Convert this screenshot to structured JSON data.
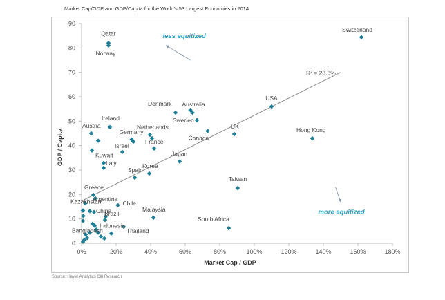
{
  "chart_data": {
    "type": "scatter",
    "title": "Market Cap/GDP and GDP/Capita for the World's 53 Largest Economies in 2014",
    "xlabel": "Market Cap / GDP",
    "ylabel": "GDP / Capita",
    "xlim": [
      0,
      180
    ],
    "ylim": [
      0,
      90
    ],
    "x_ticks": [
      0,
      20,
      40,
      60,
      80,
      100,
      120,
      140,
      160,
      180
    ],
    "x_tick_labels": [
      "0%",
      "20%",
      "40%",
      "60%",
      "80%",
      "100%",
      "120%",
      "140%",
      "160%",
      "180%"
    ],
    "y_ticks": [
      0,
      10,
      20,
      30,
      40,
      50,
      60,
      70,
      80,
      90
    ],
    "y_tick_labels": [
      "0",
      "10",
      "20",
      "30",
      "40",
      "50",
      "60",
      "70",
      "80",
      "90"
    ],
    "grid": false,
    "marker_color": "#1f7f96",
    "trendline": {
      "x": [
        0.5,
        150
      ],
      "y": [
        17.5,
        70
      ],
      "label": "R² = 28.3%"
    },
    "annotations": [
      {
        "text": "less equitized",
        "x": 47,
        "y": 84,
        "arrow_from": [
          63,
          75
        ],
        "arrow_to": [
          49,
          81
        ]
      },
      {
        "text": "more equitized",
        "x": 137,
        "y": 12,
        "arrow_from": [
          147,
          23
        ],
        "arrow_to": [
          150,
          17
        ]
      }
    ],
    "points": [
      {
        "label": "Qatar",
        "x": 15.6,
        "y": 82
      },
      {
        "label": "Norway",
        "x": 15.6,
        "y": 81
      },
      {
        "label": "Switzerland",
        "x": 162,
        "y": 84.4
      },
      {
        "label": "USA",
        "x": 110,
        "y": 56
      },
      {
        "label": "Denmark",
        "x": 54.4,
        "y": 53.5
      },
      {
        "label": "Australia",
        "x": 63,
        "y": 54.6
      },
      {
        "label": "",
        "x": 64.2,
        "y": 53.5
      },
      {
        "label": "Sweden",
        "x": 66.8,
        "y": 50.4
      },
      {
        "label": "Canada",
        "x": 73,
        "y": 46
      },
      {
        "label": "UK",
        "x": 88.4,
        "y": 44.7
      },
      {
        "label": "Hong Kong",
        "x": 133.6,
        "y": 43
      },
      {
        "label": "Japan",
        "x": 56.8,
        "y": 33.5
      },
      {
        "label": "Taiwan",
        "x": 90.4,
        "y": 22.6
      },
      {
        "label": "South Africa",
        "x": 85.2,
        "y": 6.2
      },
      {
        "label": "Austria",
        "x": 5.6,
        "y": 45
      },
      {
        "label": "",
        "x": 9.6,
        "y": 42
      },
      {
        "label": "Ireland",
        "x": 16.4,
        "y": 47.6
      },
      {
        "label": "Kuwait",
        "x": 6,
        "y": 38
      },
      {
        "label": "Israel",
        "x": 23.6,
        "y": 37.4
      },
      {
        "label": "Italy",
        "x": 12.8,
        "y": 32.9
      },
      {
        "label": "",
        "x": 12.8,
        "y": 30.9
      },
      {
        "label": "Germany",
        "x": 29,
        "y": 42.5
      },
      {
        "label": "",
        "x": 30,
        "y": 41.6
      },
      {
        "label": "Netherlands",
        "x": 39.6,
        "y": 44.4
      },
      {
        "label": "",
        "x": 40.8,
        "y": 43
      },
      {
        "label": "France",
        "x": 42,
        "y": 38.8
      },
      {
        "label": "Spain",
        "x": 30.8,
        "y": 26.9
      },
      {
        "label": "Korea",
        "x": 39.2,
        "y": 28.6
      },
      {
        "label": "Greece",
        "x": 6.8,
        "y": 19.8
      },
      {
        "label": "Argentina",
        "x": 8,
        "y": 18.4
      },
      {
        "label": "",
        "x": 2.2,
        "y": 16.4
      },
      {
        "label": "Chile",
        "x": 21,
        "y": 15.6
      },
      {
        "label": "Malaysia",
        "x": 41.6,
        "y": 10.5
      },
      {
        "label": "Kazakhstan",
        "x": 0.8,
        "y": 13.4
      },
      {
        "label": "",
        "x": 4.8,
        "y": 13.2
      },
      {
        "label": "",
        "x": 1,
        "y": 11.2
      },
      {
        "label": "",
        "x": 0.8,
        "y": 9.2
      },
      {
        "label": "Brazil",
        "x": 14,
        "y": 11
      },
      {
        "label": "",
        "x": 13.6,
        "y": 9.6
      },
      {
        "label": "China",
        "x": 7.2,
        "y": 12.8
      },
      {
        "label": "",
        "x": 6.4,
        "y": 8
      },
      {
        "label": "",
        "x": 7.6,
        "y": 7.2
      },
      {
        "label": "",
        "x": 8.4,
        "y": 5.6
      },
      {
        "label": "Indonesia",
        "x": 9.6,
        "y": 4.4
      },
      {
        "label": "Thailand",
        "x": 24.4,
        "y": 6.8
      },
      {
        "label": "",
        "x": 17.2,
        "y": 4
      },
      {
        "label": "",
        "x": 11.2,
        "y": 2.8
      },
      {
        "label": "",
        "x": 13.2,
        "y": 2
      },
      {
        "label": "Bangladesh",
        "x": 2.4,
        "y": 3.6
      },
      {
        "label": "",
        "x": 3.2,
        "y": 2.2
      },
      {
        "label": "",
        "x": 1.6,
        "y": 1.4
      },
      {
        "label": "",
        "x": 4.8,
        "y": 4.4
      },
      {
        "label": "",
        "x": 0.8,
        "y": 0.6
      }
    ],
    "source": "Source: Haver Analytics Citi Research"
  }
}
